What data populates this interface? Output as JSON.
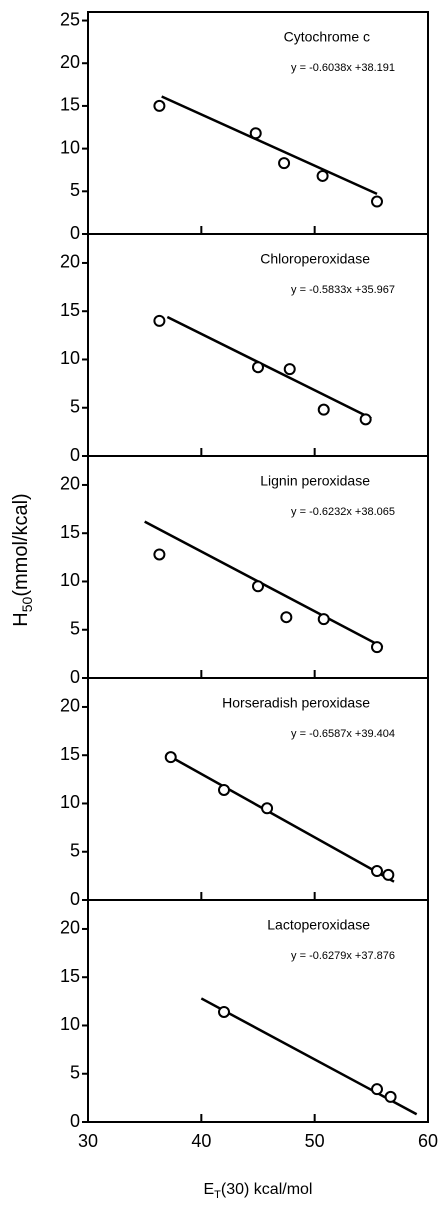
{
  "ylabel": {
    "main": "H",
    "sub": "50",
    "rest": "(mmol/kcal)"
  },
  "xlabel": {
    "main": "E",
    "sub": "T",
    "rest": "(30) kcal/mol"
  },
  "chart_data": [
    {
      "type": "scatter",
      "title": "Cytochrome c",
      "equation": "y = -0.6038x +38.191",
      "x": [
        36.3,
        44.8,
        47.3,
        50.7,
        55.5
      ],
      "values": [
        15,
        11.8,
        8.3,
        6.8,
        3.8
      ],
      "fit": {
        "x": [
          36.5,
          55.5
        ],
        "y": [
          16.1,
          4.7
        ]
      },
      "xlim": [
        30,
        60
      ],
      "xticks": [
        30,
        40,
        50,
        60
      ],
      "ylim": [
        0,
        26
      ],
      "yticks": [
        0,
        5,
        10,
        15,
        20,
        25
      ]
    },
    {
      "type": "scatter",
      "title": "Chloroperoxidase",
      "equation": "y = -0.5833x +35.967",
      "x": [
        36.3,
        45,
        47.8,
        50.8,
        54.5
      ],
      "values": [
        14,
        9.2,
        9,
        4.8,
        3.8
      ],
      "fit": {
        "x": [
          37,
          55
        ],
        "y": [
          14.4,
          3.9
        ]
      },
      "xlim": [
        30,
        60
      ],
      "xticks": [
        30,
        40,
        50,
        60
      ],
      "ylim": [
        0,
        23
      ],
      "yticks": [
        0,
        5,
        10,
        15,
        20
      ]
    },
    {
      "type": "scatter",
      "title": "Lignin peroxidase",
      "equation": "y = -0.6232x +38.065",
      "x": [
        36.3,
        45,
        47.5,
        50.8,
        55.5
      ],
      "values": [
        12.8,
        9.5,
        6.3,
        6.1,
        3.2
      ],
      "fit": {
        "x": [
          35,
          56
        ],
        "y": [
          16.2,
          3.2
        ]
      },
      "xlim": [
        30,
        60
      ],
      "xticks": [
        30,
        40,
        50,
        60
      ],
      "ylim": [
        0,
        23
      ],
      "yticks": [
        0,
        5,
        10,
        15,
        20
      ]
    },
    {
      "type": "scatter",
      "title": "Horseradish peroxidase",
      "equation": "y = -0.6587x +39.404",
      "x": [
        37.3,
        42,
        45.8,
        55.5,
        56.5
      ],
      "values": [
        14.8,
        11.4,
        9.5,
        3,
        2.6
      ],
      "fit": {
        "x": [
          37.5,
          57
        ],
        "y": [
          14.7,
          1.9
        ]
      },
      "xlim": [
        30,
        60
      ],
      "xticks": [
        30,
        40,
        50,
        60
      ],
      "ylim": [
        0,
        23
      ],
      "yticks": [
        0,
        5,
        10,
        15,
        20
      ]
    },
    {
      "type": "scatter",
      "title": "Lactoperoxidase",
      "equation": "y = -0.6279x +37.876",
      "x": [
        42,
        55.5,
        56.7
      ],
      "values": [
        11.4,
        3.4,
        2.6
      ],
      "fit": {
        "x": [
          40,
          59
        ],
        "y": [
          12.8,
          0.8
        ]
      },
      "xlim": [
        30,
        60
      ],
      "xticks": [
        30,
        40,
        50,
        60
      ],
      "ylim": [
        0,
        23
      ],
      "yticks": [
        0,
        5,
        10,
        15,
        20
      ]
    }
  ]
}
